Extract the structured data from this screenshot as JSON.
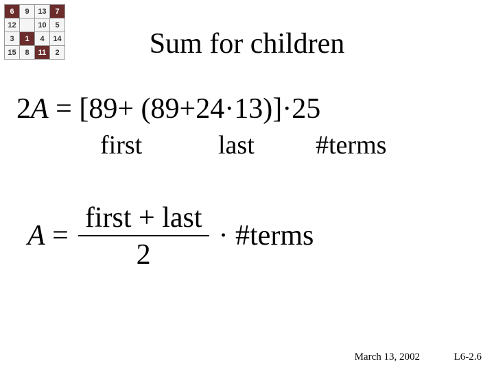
{
  "magicSquare": {
    "cells": [
      [
        {
          "v": "6",
          "d": true
        },
        {
          "v": "9",
          "d": false
        },
        {
          "v": "13",
          "d": false
        },
        {
          "v": "7",
          "d": true
        }
      ],
      [
        {
          "v": "12",
          "d": false
        },
        {
          "v": "",
          "d": false
        },
        {
          "v": "10",
          "d": false
        },
        {
          "v": "5",
          "d": false
        }
      ],
      [
        {
          "v": "3",
          "d": false
        },
        {
          "v": "1",
          "d": true
        },
        {
          "v": "4",
          "d": false
        },
        {
          "v": "14",
          "d": false
        }
      ],
      [
        {
          "v": "15",
          "d": false
        },
        {
          "v": "8",
          "d": false
        },
        {
          "v": "11",
          "d": true
        },
        {
          "v": "2",
          "d": false
        }
      ]
    ],
    "darkBg": "#6b2c2c",
    "lightBg": "#f5f5f5"
  },
  "title": "Sum for children",
  "equation1": {
    "lhsVar": "A",
    "prefix": "2",
    "eq": " = ",
    "open": "[",
    "first": "89",
    "plus1": "+ (",
    "firstAgain": "89",
    "plus2": "+",
    "step": "24",
    "dot1": "·",
    "nMinus1": "13",
    "close": ")]",
    "dot2": "·",
    "terms": "25"
  },
  "labels": {
    "first": "first",
    "last": "last",
    "terms": "#terms"
  },
  "equation2": {
    "var": "A",
    "eq": " = ",
    "numPart1": "first",
    "numPlus": " + ",
    "numPart2": "last",
    "den": "2",
    "dot": " · ",
    "terms": "#terms"
  },
  "footer": {
    "date": "March 13, 2002",
    "page": "L6-2.6"
  },
  "colors": {
    "text": "#000000",
    "bg": "#ffffff"
  },
  "fonts": {
    "title_pt": 42,
    "body_pt": 42,
    "labels_pt": 38,
    "footer_pt": 15
  }
}
